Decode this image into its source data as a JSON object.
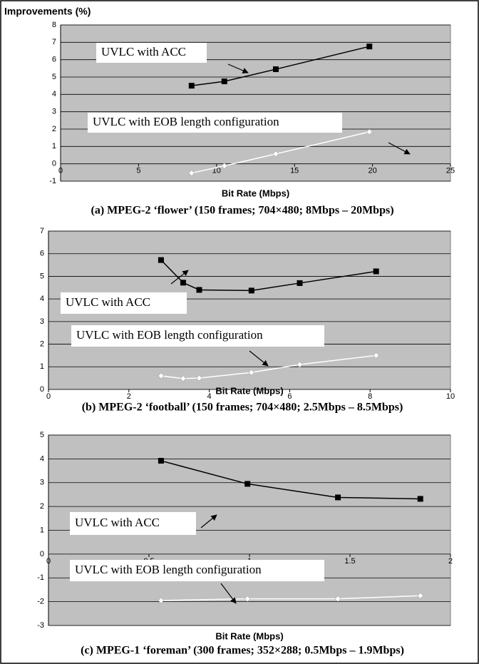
{
  "chart_data": [
    {
      "type": "line",
      "ylabel": "Improvements (%)",
      "xlabel": "Bit Rate (Mbps)",
      "caption": "(a) MPEG-2 ‘flower’ (150 frames; 704×480; 8Mbps – 20Mbps)",
      "xlim": [
        0,
        25
      ],
      "xticks": [
        0,
        5,
        10,
        15,
        20,
        25
      ],
      "ylim": [
        -1,
        8
      ],
      "yticks": [
        -1,
        0,
        1,
        2,
        3,
        4,
        5,
        6,
        7,
        8
      ],
      "grid": true,
      "series": [
        {
          "name": "UVLC with ACC",
          "color": "#000000",
          "marker": "square",
          "x": [
            8.4,
            10.5,
            13.8,
            19.8
          ],
          "values": [
            4.5,
            4.75,
            5.45,
            6.76
          ]
        },
        {
          "name": "UVLC with EOB length configuration",
          "color": "#ffffff",
          "marker": "diamond",
          "x": [
            8.4,
            10.5,
            13.8,
            19.8
          ],
          "values": [
            -0.53,
            -0.12,
            0.57,
            1.84
          ]
        }
      ]
    },
    {
      "type": "line",
      "xlabel": "Bit Rate (Mbps)",
      "caption": "(b) MPEG-2 ‘football’ (150 frames; 704×480; 2.5Mbps – 8.5Mbps)",
      "xlim": [
        0,
        10
      ],
      "xticks": [
        0,
        2,
        4,
        6,
        8,
        10
      ],
      "ylim": [
        0,
        7
      ],
      "yticks": [
        0,
        1,
        2,
        3,
        4,
        5,
        6,
        7
      ],
      "grid": true,
      "series": [
        {
          "name": "UVLC with ACC",
          "color": "#000000",
          "marker": "square",
          "x": [
            2.8,
            3.35,
            3.75,
            5.05,
            6.25,
            8.15
          ],
          "values": [
            5.72,
            4.72,
            4.4,
            4.37,
            4.7,
            5.22
          ]
        },
        {
          "name": "UVLC with EOB length configuration",
          "color": "#ffffff",
          "marker": "diamond",
          "x": [
            2.8,
            3.35,
            3.75,
            5.05,
            6.25,
            8.15
          ],
          "values": [
            0.6,
            0.48,
            0.5,
            0.75,
            1.1,
            1.5
          ]
        }
      ]
    },
    {
      "type": "line",
      "xlabel": "Bit Rate (Mbps)",
      "caption": "(c) MPEG-1 ‘foreman’ (300 frames; 352×288; 0.5Mbps – 1.9Mbps)",
      "xlim": [
        0,
        2
      ],
      "xticks": [
        0,
        0.5,
        1,
        1.5,
        2
      ],
      "ylim": [
        -3,
        5
      ],
      "yticks": [
        -3,
        -2,
        -1,
        0,
        1,
        2,
        3,
        4,
        5
      ],
      "grid": true,
      "series": [
        {
          "name": "UVLC with ACC",
          "color": "#000000",
          "marker": "square",
          "x": [
            0.56,
            0.99,
            1.44,
            1.85
          ],
          "values": [
            3.92,
            2.95,
            2.38,
            2.32
          ]
        },
        {
          "name": "UVLC with EOB length configuration",
          "color": "#ffffff",
          "marker": "diamond",
          "x": [
            0.56,
            0.99,
            1.44,
            1.85
          ],
          "values": [
            -1.95,
            -1.88,
            -1.88,
            -1.75
          ]
        }
      ]
    }
  ]
}
